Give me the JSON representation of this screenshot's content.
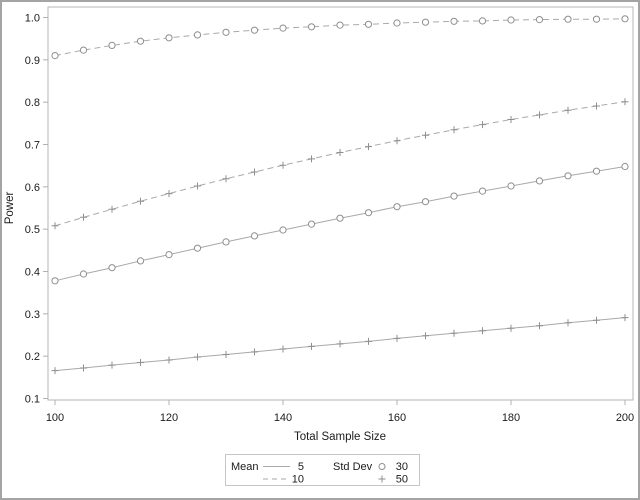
{
  "page": {
    "background": "#ffffff",
    "border_color": "#a4a4a4",
    "text_color": "#1c1c1c",
    "curve_color": "#a9a9a9",
    "marker_color": "#8f8f8f",
    "axis_color": "#b6b6b6"
  },
  "chart_data": {
    "type": "line",
    "title": "",
    "xlabel": "Total Sample Size",
    "ylabel": "Power",
    "xlim": [
      100,
      200
    ],
    "ylim": [
      0.1,
      1.0
    ],
    "xticks": [
      100,
      120,
      140,
      160,
      180,
      200
    ],
    "yticks": [
      0.1,
      0.2,
      0.3,
      0.4,
      0.5,
      0.6,
      0.7,
      0.8,
      0.9,
      1.0
    ],
    "grid": false,
    "legend_position": "bottom-center",
    "x": [
      100,
      105,
      110,
      115,
      120,
      125,
      130,
      135,
      140,
      145,
      150,
      155,
      160,
      165,
      170,
      175,
      180,
      185,
      190,
      195,
      200
    ],
    "series": [
      {
        "name": "Mean 10, Std Dev 30",
        "mean": "10",
        "std_dev": "30",
        "line": "dashed",
        "marker": "circle",
        "values": [
          0.91,
          0.923,
          0.934,
          0.944,
          0.952,
          0.959,
          0.965,
          0.97,
          0.975,
          0.978,
          0.982,
          0.984,
          0.987,
          0.989,
          0.991,
          0.992,
          0.994,
          0.995,
          0.996,
          0.996,
          0.997
        ]
      },
      {
        "name": "Mean 10, Std Dev 50",
        "mean": "10",
        "std_dev": "50",
        "line": "dashed",
        "marker": "plus",
        "values": [
          0.508,
          0.528,
          0.547,
          0.566,
          0.584,
          0.602,
          0.619,
          0.635,
          0.651,
          0.666,
          0.681,
          0.695,
          0.709,
          0.722,
          0.735,
          0.747,
          0.759,
          0.77,
          0.781,
          0.791,
          0.801
        ]
      },
      {
        "name": "Mean 5, Std Dev 30",
        "mean": "5",
        "std_dev": "30",
        "line": "solid",
        "marker": "circle",
        "values": [
          0.378,
          0.394,
          0.409,
          0.425,
          0.44,
          0.455,
          0.47,
          0.484,
          0.498,
          0.512,
          0.526,
          0.539,
          0.553,
          0.565,
          0.578,
          0.59,
          0.602,
          0.614,
          0.626,
          0.637,
          0.648
        ]
      },
      {
        "name": "Mean 5, Std Dev 50",
        "mean": "5",
        "std_dev": "50",
        "line": "solid",
        "marker": "plus",
        "values": [
          0.166,
          0.172,
          0.179,
          0.185,
          0.191,
          0.198,
          0.204,
          0.21,
          0.217,
          0.223,
          0.229,
          0.235,
          0.242,
          0.248,
          0.254,
          0.26,
          0.266,
          0.272,
          0.279,
          0.285,
          0.291
        ]
      }
    ]
  },
  "legend": {
    "mean": {
      "label": "Mean",
      "items": [
        {
          "line": "solid",
          "value": "5"
        },
        {
          "line": "dashed",
          "value": "10"
        }
      ]
    },
    "std_dev": {
      "label": "Std Dev",
      "items": [
        {
          "marker": "circle",
          "value": "30"
        },
        {
          "marker": "plus",
          "value": "50"
        }
      ]
    }
  }
}
